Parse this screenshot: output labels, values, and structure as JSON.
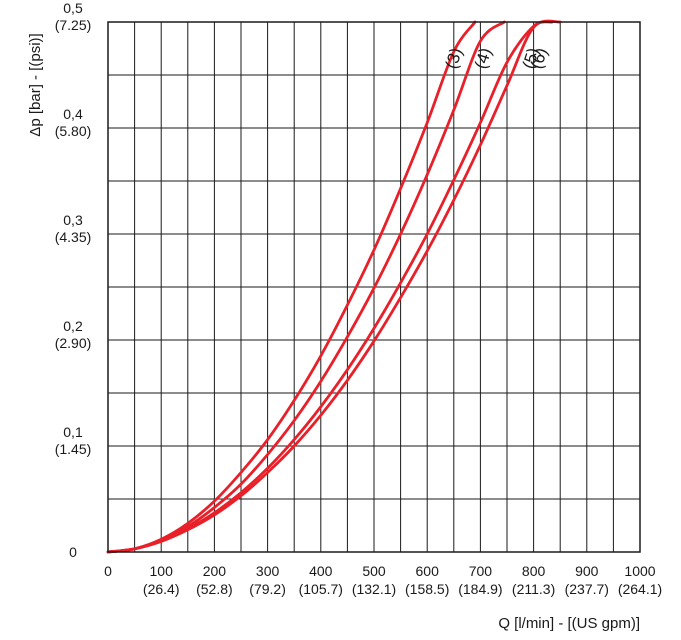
{
  "chart_data": {
    "type": "line",
    "title": "",
    "xlabel": "Q [l/min] - [(US gpm)]",
    "ylabel": "Δp [bar] - [(psi)]",
    "xlim": [
      0,
      1000
    ],
    "ylim": [
      0,
      0.5
    ],
    "grid": true,
    "x_ticks": [
      {
        "value": 0,
        "label": "0",
        "sub": ""
      },
      {
        "value": 100,
        "label": "100",
        "sub": "(26.4)"
      },
      {
        "value": 200,
        "label": "200",
        "sub": "(52.8)"
      },
      {
        "value": 300,
        "label": "300",
        "sub": "(79.2)"
      },
      {
        "value": 400,
        "label": "400",
        "sub": "(105.7)"
      },
      {
        "value": 500,
        "label": "500",
        "sub": "(132.1)"
      },
      {
        "value": 600,
        "label": "600",
        "sub": "(158.5)"
      },
      {
        "value": 700,
        "label": "700",
        "sub": "(184.9)"
      },
      {
        "value": 800,
        "label": "800",
        "sub": "(211.3)"
      },
      {
        "value": 900,
        "label": "900",
        "sub": "(237.7)"
      },
      {
        "value": 1000,
        "label": "1000",
        "sub": "(264.1)"
      }
    ],
    "y_ticks": [
      {
        "value": 0,
        "label": "0",
        "sub": ""
      },
      {
        "value": 0.1,
        "label": "0,1",
        "sub": "(1.45)"
      },
      {
        "value": 0.2,
        "label": "0,2",
        "sub": "(2.90)"
      },
      {
        "value": 0.3,
        "label": "0,3",
        "sub": "(4.35)"
      },
      {
        "value": 0.4,
        "label": "0,4",
        "sub": "(5.80)"
      },
      {
        "value": 0.5,
        "label": "0,5",
        "sub": "(7.25)"
      }
    ],
    "series": [
      {
        "name": "(3)",
        "color": "#e8202a",
        "x": [
          0,
          50,
          100,
          150,
          200,
          250,
          300,
          350,
          400,
          450,
          500,
          550,
          600,
          650,
          690
        ],
        "y": [
          0,
          0.003,
          0.012,
          0.027,
          0.048,
          0.075,
          0.106,
          0.143,
          0.185,
          0.233,
          0.285,
          0.343,
          0.405,
          0.472,
          0.5
        ]
      },
      {
        "name": "(4)",
        "color": "#e8202a",
        "x": [
          0,
          50,
          100,
          150,
          200,
          250,
          300,
          350,
          400,
          450,
          500,
          550,
          600,
          650,
          700,
          745
        ],
        "y": [
          0,
          0.003,
          0.011,
          0.024,
          0.042,
          0.064,
          0.092,
          0.124,
          0.161,
          0.203,
          0.249,
          0.3,
          0.356,
          0.417,
          0.482,
          0.5
        ]
      },
      {
        "name": "(5)",
        "color": "#e8202a",
        "x": [
          0,
          50,
          100,
          150,
          200,
          250,
          300,
          350,
          400,
          450,
          500,
          550,
          600,
          650,
          700,
          750,
          800,
          835
        ],
        "y": [
          0,
          0.003,
          0.011,
          0.022,
          0.037,
          0.056,
          0.079,
          0.106,
          0.137,
          0.172,
          0.211,
          0.254,
          0.3,
          0.351,
          0.405,
          0.462,
          0.496,
          0.5
        ]
      },
      {
        "name": "(6)",
        "color": "#e8202a",
        "x": [
          0,
          50,
          100,
          150,
          200,
          250,
          300,
          350,
          400,
          450,
          500,
          550,
          600,
          650,
          700,
          750,
          800,
          850
        ],
        "y": [
          0,
          0.003,
          0.01,
          0.021,
          0.035,
          0.053,
          0.075,
          0.1,
          0.129,
          0.162,
          0.199,
          0.24,
          0.284,
          0.332,
          0.384,
          0.44,
          0.495,
          0.5
        ]
      }
    ]
  }
}
